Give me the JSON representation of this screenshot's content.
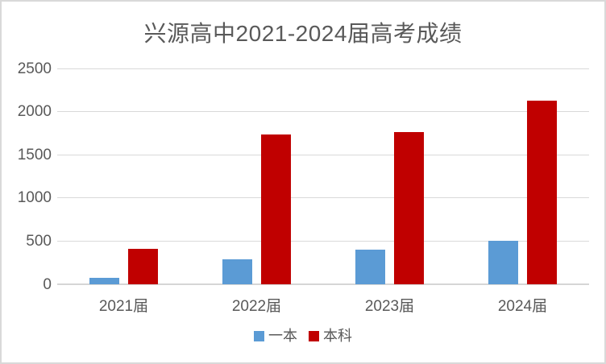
{
  "chart_data": {
    "type": "bar",
    "title": "兴源高中2021-2024届高考成绩",
    "categories": [
      "2021届",
      "2022届",
      "2023届",
      "2024届"
    ],
    "series": [
      {
        "name": "一本",
        "color": "#5B9BD5",
        "values": [
          75,
          290,
          400,
          505
        ]
      },
      {
        "name": "本科",
        "color": "#C00000",
        "values": [
          410,
          1735,
          1760,
          2130
        ]
      }
    ],
    "ylim": [
      0,
      2500
    ],
    "yticks": [
      0,
      500,
      1000,
      1500,
      2000,
      2500
    ],
    "xlabel": "",
    "ylabel": "",
    "grid": "horizontal",
    "legend_position": "bottom"
  },
  "colors": {
    "background": "#FFFFFF",
    "border": "#D9D9D9",
    "gridline": "#D9D9D9",
    "axis_text": "#595959",
    "title_text": "#595959"
  }
}
